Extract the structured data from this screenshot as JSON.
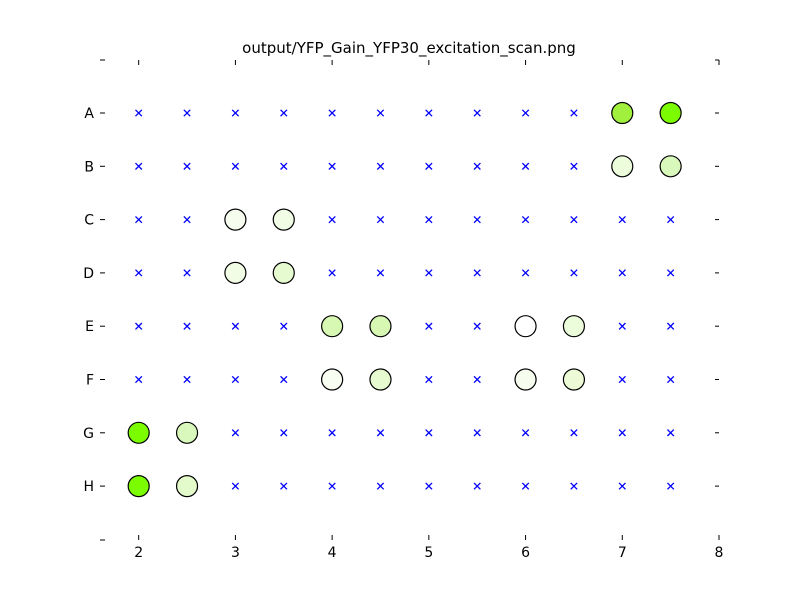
{
  "chart_data": {
    "type": "scatter",
    "title": "output/YFP_Gain_YFP30_excitation_scan.png",
    "xlabel": "",
    "ylabel": "",
    "xlim": [
      1.6,
      8
    ],
    "x_ticks": [
      2,
      3,
      4,
      5,
      6,
      7,
      8
    ],
    "rows": [
      "A",
      "B",
      "C",
      "D",
      "E",
      "F",
      "G",
      "H"
    ],
    "grid": false,
    "columns_x": [
      2,
      2.5,
      3,
      3.5,
      4,
      4.5,
      5,
      5.5,
      6,
      6.5,
      7,
      7.5
    ],
    "empty_marker_color": "#0000ff",
    "wells": [
      {
        "row": "A",
        "x": 7,
        "color": "#a2f03e"
      },
      {
        "row": "A",
        "x": 7.5,
        "color": "#7cfc00"
      },
      {
        "row": "B",
        "x": 7,
        "color": "#ecfddb"
      },
      {
        "row": "B",
        "x": 7.5,
        "color": "#d9f8bb"
      },
      {
        "row": "C",
        "x": 3,
        "color": "#f6fdef"
      },
      {
        "row": "C",
        "x": 3.5,
        "color": "#f2fde6"
      },
      {
        "row": "D",
        "x": 3,
        "color": "#f2fde6"
      },
      {
        "row": "D",
        "x": 3.5,
        "color": "#e6fbd0"
      },
      {
        "row": "E",
        "x": 4,
        "color": "#d6f8b3"
      },
      {
        "row": "E",
        "x": 4.5,
        "color": "#d6f8b3"
      },
      {
        "row": "E",
        "x": 6,
        "color": "#ffffff"
      },
      {
        "row": "E",
        "x": 6.5,
        "color": "#ecfddb"
      },
      {
        "row": "F",
        "x": 4,
        "color": "#f8fef2"
      },
      {
        "row": "F",
        "x": 4.5,
        "color": "#e6fbd0"
      },
      {
        "row": "F",
        "x": 6,
        "color": "#f6fdef"
      },
      {
        "row": "F",
        "x": 6.5,
        "color": "#ecfbd6"
      },
      {
        "row": "G",
        "x": 2,
        "color": "#7cfc00"
      },
      {
        "row": "G",
        "x": 2.5,
        "color": "#d9f8bb"
      },
      {
        "row": "H",
        "x": 2,
        "color": "#7cfc00"
      },
      {
        "row": "H",
        "x": 2.5,
        "color": "#e3fbcb"
      }
    ]
  }
}
